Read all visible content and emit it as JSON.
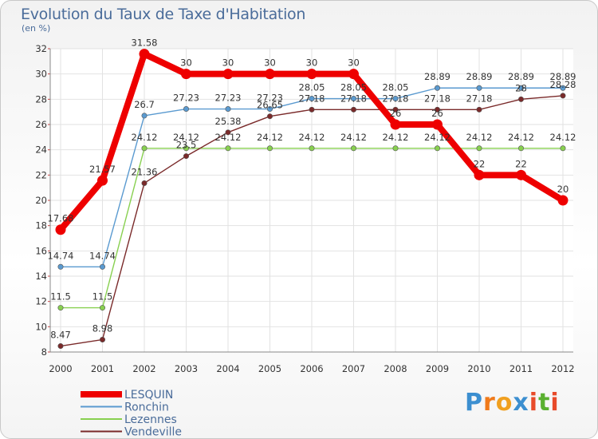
{
  "title": "Evolution du Taux de Taxe d'Habitation",
  "unit": "(en %)",
  "logo": {
    "letters": [
      "P",
      "r",
      "o",
      "x",
      "i",
      "t",
      "i"
    ],
    "colors": [
      "#3c8fd0",
      "#f07a1a",
      "#f0a020",
      "#3c8fd0",
      "#e84a2a",
      "#5ab030",
      "#e84a2a"
    ]
  },
  "chart_data": {
    "type": "line",
    "title": "Evolution du Taux de Taxe d'Habitation",
    "ylabel": "(en %)",
    "x": [
      "2000",
      "2001",
      "2002",
      "2003",
      "2004",
      "2005",
      "2006",
      "2007",
      "2008",
      "2009",
      "2010",
      "2011",
      "2012"
    ],
    "ylim": [
      8,
      32
    ],
    "yticks": [
      8,
      10,
      12,
      14,
      16,
      18,
      20,
      22,
      24,
      26,
      28,
      30,
      32
    ],
    "grid": true,
    "legend_position": "bottom-left",
    "series": [
      {
        "name": "LESQUIN",
        "color": "#ee0000",
        "width": "thick",
        "values": [
          17.68,
          21.57,
          31.58,
          30,
          30,
          30,
          30,
          30,
          26,
          26,
          22,
          22,
          20
        ],
        "labels": [
          "17.68",
          "21.57",
          "31.58",
          "30",
          "30",
          "30",
          "30",
          "30",
          "26",
          "26",
          "22",
          "22",
          "20"
        ]
      },
      {
        "name": "Ronchin",
        "color": "#5a9ad0",
        "width": "thin",
        "values": [
          14.74,
          14.74,
          26.7,
          27.23,
          27.23,
          27.23,
          28.05,
          28.05,
          28.05,
          28.89,
          28.89,
          28.89,
          28.89
        ],
        "labels": [
          "14.74",
          "14.74",
          "26.7",
          "27.23",
          "27.23",
          "27.23",
          "28.05",
          "28.05",
          "28.05",
          "28.89",
          "28.89",
          "28.89",
          "28.89"
        ]
      },
      {
        "name": "Lezennes",
        "color": "#88d050",
        "width": "thin",
        "values": [
          11.5,
          11.5,
          24.12,
          24.12,
          24.12,
          24.12,
          24.12,
          24.12,
          24.12,
          24.12,
          24.12,
          24.12,
          24.12
        ],
        "labels": [
          "11.5",
          "11.5",
          "24.12",
          "24.12",
          "24.12",
          "24.12",
          "24.12",
          "24.12",
          "24.12",
          "24.12",
          "24.12",
          "24.12",
          "24.12"
        ]
      },
      {
        "name": "Vendeville",
        "color": "#7a2a2a",
        "width": "thin",
        "values": [
          8.47,
          8.98,
          21.36,
          23.5,
          25.38,
          26.65,
          27.18,
          27.18,
          27.18,
          27.18,
          27.18,
          28,
          28.28
        ],
        "labels": [
          "8.47",
          "8.98",
          "21.36",
          "23.5",
          "25.38",
          "26.65",
          "27.18",
          "27.18",
          "27.18",
          "27.18",
          "27.18",
          "28",
          "28.28"
        ]
      }
    ]
  }
}
